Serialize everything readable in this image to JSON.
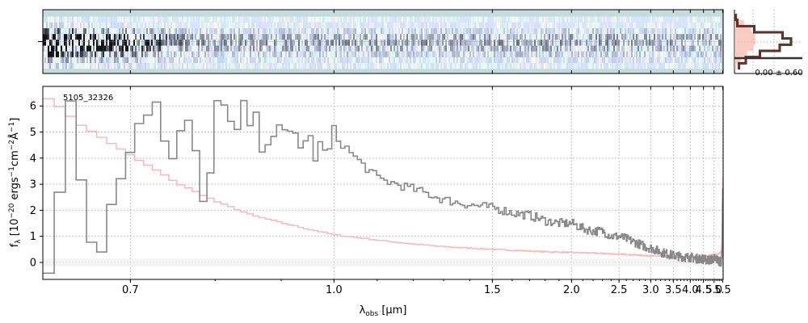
{
  "chart_data": [
    {
      "type": "line",
      "panel": "main-spectrum",
      "annotation": "5105_32326",
      "xlabel_prefix": "λ",
      "xlabel_sub": "obs",
      "xlabel_suffix": " [μm]",
      "ylabel": "f_λ [10^−20 ergs^−1cm^−2Å^−1]",
      "ylabel_parts": {
        "f": "f",
        "f_sub": "λ",
        "open": " [10",
        "exp1": "−20",
        "mid1": " ergs",
        "exp2": "−1",
        "mid2": "cm",
        "exp3": "−2",
        "mid3": "Å",
        "exp4": "−1",
        "close": "]"
      },
      "x_scale": "reciprocal",
      "xlim": [
        0.62,
        5.53
      ],
      "ylim": [
        -0.65,
        6.75
      ],
      "xticks": [
        {
          "value": 0.7,
          "label": "0.7"
        },
        {
          "value": 1.0,
          "label": "1.0"
        },
        {
          "value": 1.5,
          "label": "1.5"
        },
        {
          "value": 2.0,
          "label": "2.0"
        },
        {
          "value": 2.5,
          "label": "2.5"
        },
        {
          "value": 3.0,
          "label": "3.0"
        },
        {
          "value": 3.5,
          "label": "3.5"
        },
        {
          "value": 4.0,
          "label": "4.0"
        },
        {
          "value": 4.5,
          "label": "4.5"
        },
        {
          "value": 5.0,
          "label": "5.0"
        },
        {
          "value": 5.5,
          "label": "5.5"
        }
      ],
      "yticks": [
        {
          "value": 0,
          "label": "0"
        },
        {
          "value": 1,
          "label": "1"
        },
        {
          "value": 2,
          "label": "2"
        },
        {
          "value": 3,
          "label": "3"
        },
        {
          "value": 4,
          "label": "4"
        },
        {
          "value": 5,
          "label": "5"
        },
        {
          "value": 6,
          "label": "6"
        }
      ],
      "grid": true,
      "series": [
        {
          "role": "flux",
          "color": "#888888",
          "x": [
            0.62,
            0.64,
            0.66,
            0.68,
            0.7,
            0.72,
            0.74,
            0.76,
            0.78,
            0.8,
            0.82,
            0.84,
            0.86,
            0.88,
            0.9,
            0.92,
            0.94,
            0.96,
            0.98,
            1.0,
            1.05,
            1.1,
            1.15,
            1.2,
            1.3,
            1.4,
            1.5,
            1.6,
            1.7,
            1.8,
            1.9,
            2.0,
            2.1,
            2.2,
            2.3,
            2.4,
            2.5,
            2.6,
            2.7,
            2.8,
            2.9,
            3.0,
            3.2,
            3.4,
            3.6,
            3.8,
            4.0,
            4.2,
            4.4,
            4.6,
            4.8,
            5.0,
            5.2,
            5.4,
            5.45,
            5.5
          ],
          "y": [
            -0.6,
            6.7,
            -0.6,
            3.2,
            5.1,
            6.5,
            3.4,
            5.6,
            2.0,
            6.4,
            4.6,
            5.8,
            4.8,
            5.2,
            4.5,
            4.9,
            4.6,
            4.3,
            4.0,
            4.8,
            3.9,
            3.2,
            3.0,
            2.8,
            2.4,
            2.2,
            2.1,
            1.9,
            1.8,
            1.6,
            1.5,
            1.5,
            1.3,
            1.2,
            1.2,
            1.0,
            1.0,
            0.9,
            0.8,
            0.7,
            0.6,
            0.55,
            0.4,
            0.3,
            0.25,
            0.2,
            0.2,
            0.15,
            0.15,
            0.1,
            0.1,
            0.15,
            0.1,
            0.0,
            0.4,
            3.0
          ]
        },
        {
          "role": "error",
          "color": "#ffb3b3",
          "x": [
            0.62,
            0.65,
            0.7,
            0.75,
            0.8,
            0.85,
            0.9,
            0.95,
            1.0,
            1.1,
            1.2,
            1.3,
            1.4,
            1.5,
            1.75,
            2.0,
            2.5,
            3.0,
            3.5,
            4.0,
            4.5,
            5.0,
            5.2,
            5.4,
            5.45,
            5.5
          ],
          "y": [
            6.3,
            5.2,
            4.0,
            3.0,
            2.3,
            1.8,
            1.5,
            1.25,
            1.05,
            0.85,
            0.7,
            0.6,
            0.55,
            0.5,
            0.42,
            0.38,
            0.32,
            0.25,
            0.22,
            0.2,
            0.22,
            0.3,
            0.32,
            0.4,
            0.8,
            3.3
          ]
        }
      ]
    },
    {
      "type": "heatmap",
      "panel": "2d-spectrum",
      "description_colormap": [
        "#c5dcdc",
        "#ffffff",
        "#1a1a2e"
      ],
      "rows": 9,
      "noise": true
    },
    {
      "type": "line",
      "panel": "histogram",
      "annotation": "0.00 ± 0.60",
      "colors": {
        "data": "#7a3020",
        "model": "#f5b7a8",
        "outline": "#333333"
      },
      "y_profile": [
        0.02,
        0.05,
        0.35,
        0.85,
        1.0,
        0.8,
        0.45,
        0.2,
        0.08
      ],
      "y_gauss": [
        0.15,
        0.45,
        0.8,
        0.98,
        1.0,
        0.9,
        0.6,
        0.3,
        0.1
      ]
    }
  ]
}
